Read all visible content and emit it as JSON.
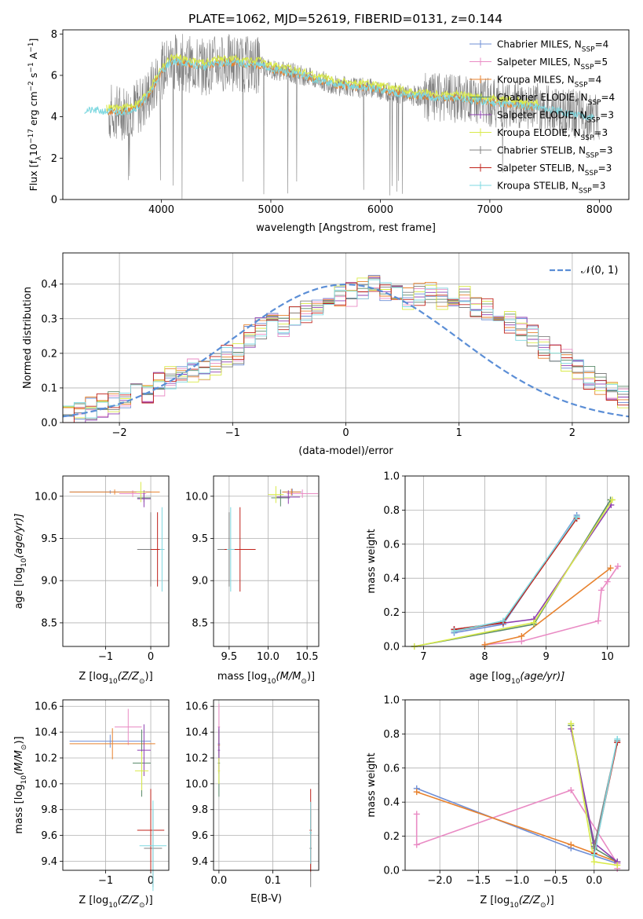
{
  "figure_title": "PLATE=1062, MJD=52619, FIBERID=0131, z=0.144",
  "colors": {
    "chabrier_miles": "#6f8fd6",
    "salpeter_miles": "#e98bc4",
    "kroupa_miles": "#e8822e",
    "chabrier_elodie": "#5a8a6a",
    "salpeter_elodie": "#8e3fb0",
    "kroupa_elodie": "#d9ea4a",
    "chabrier_stelib": "#808080",
    "salpeter_stelib": "#c0221a",
    "kroupa_stelib": "#7ed8e0",
    "gaussian": "#5b8ed6"
  },
  "chart_data": [
    {
      "id": "spectrum",
      "type": "line",
      "xlabel": "wavelength [Angstrom, rest frame]",
      "ylabel_main": "Flux [f",
      "ylabel_sub": "λ",
      "ylabel_rest": "10",
      "ylabel_exp": "−17",
      "ylabel_tail": " erg cm",
      "ylabel_exp2": "−2",
      "ylabel_tail2": " s",
      "ylabel_exp3": "−1",
      "ylabel_tail3": " A",
      "ylabel_exp4": "−1",
      "ylabel_end": "]",
      "xlim": [
        3100,
        8270
      ],
      "ylim": [
        0,
        8.2
      ],
      "xticks": [
        4000,
        5000,
        6000,
        7000,
        8000
      ],
      "yticks": [
        0,
        2,
        4,
        6,
        8
      ],
      "grid": false,
      "legend_position": "top-right",
      "legend": [
        {
          "text": "Chabrier MILES, N",
          "sub": "SSP",
          "tail": "=4",
          "color_key": "chabrier_miles"
        },
        {
          "text": "Salpeter MILES, N",
          "sub": "SSP",
          "tail": "=5",
          "color_key": "salpeter_miles"
        },
        {
          "text": "Kroupa MILES, N",
          "sub": "SSP",
          "tail": "=4",
          "color_key": "kroupa_miles"
        },
        {
          "text": "Chabrier ELODIE, N",
          "sub": "SSP",
          "tail": "=4",
          "color_key": "chabrier_elodie"
        },
        {
          "text": "Salpeter ELODIE, N",
          "sub": "SSP",
          "tail": "=3",
          "color_key": "salpeter_elodie"
        },
        {
          "text": "Kroupa ELODIE, N",
          "sub": "SSP",
          "tail": "=3",
          "color_key": "kroupa_elodie"
        },
        {
          "text": "Chabrier STELIB, N",
          "sub": "SSP",
          "tail": "=3",
          "color_key": "chabrier_stelib"
        },
        {
          "text": "Salpeter STELIB, N",
          "sub": "SSP",
          "tail": "=3",
          "color_key": "salpeter_stelib"
        },
        {
          "text": "Kroupa STELIB, N",
          "sub": "SSP",
          "tail": "=3",
          "color_key": "kroupa_stelib"
        }
      ],
      "data_x": [
        3300,
        3400,
        3500,
        3600,
        3700,
        3800,
        3900,
        4000,
        4100,
        4200,
        4300,
        4400,
        4500,
        4600,
        4700,
        4800,
        4900,
        5000,
        5100,
        5200,
        5300,
        5400,
        5500,
        5600,
        5700,
        5800,
        5900,
        6000,
        6100,
        6200,
        6300,
        6400,
        6500,
        6600,
        6700,
        6800,
        6900,
        7000,
        7100,
        7200,
        7300,
        7400,
        7500,
        7600,
        7700,
        7800,
        7900,
        8000
      ],
      "model_flux": [
        4.3,
        4.3,
        4.25,
        4.2,
        4.3,
        4.5,
        5.2,
        6.2,
        6.7,
        6.6,
        6.5,
        6.4,
        6.6,
        6.6,
        6.6,
        6.5,
        6.5,
        6.3,
        6.2,
        6.1,
        6.0,
        5.8,
        5.7,
        5.5,
        5.5,
        5.4,
        5.4,
        5.3,
        5.2,
        5.1,
        5.0,
        5.0,
        4.9,
        4.9,
        4.9,
        4.8,
        4.75,
        4.7,
        4.65,
        4.6,
        4.55,
        4.5,
        4.4,
        4.3,
        4.2,
        4.1,
        4.0,
        4.0
      ],
      "data_start": 3520,
      "data_end": 8000
    },
    {
      "id": "residuals",
      "type": "histogram",
      "xlabel": "(data-model)/error",
      "ylabel": "Normed distribution",
      "xlim": [
        -2.5,
        2.5
      ],
      "ylim": [
        0,
        0.49
      ],
      "xticks": [
        -2,
        -1,
        0,
        1,
        2
      ],
      "yticks": [
        0.0,
        0.1,
        0.2,
        0.3,
        0.4
      ],
      "grid": true,
      "legend_position": "top-right",
      "gaussian_label": "𝒩(0, 1)",
      "bin_width": 0.1,
      "bin_start": -2.5,
      "base_counts": [
        0.03,
        0.03,
        0.04,
        0.05,
        0.06,
        0.06,
        0.08,
        0.09,
        0.11,
        0.13,
        0.13,
        0.15,
        0.15,
        0.17,
        0.19,
        0.2,
        0.25,
        0.27,
        0.29,
        0.28,
        0.3,
        0.32,
        0.33,
        0.35,
        0.37,
        0.37,
        0.39,
        0.41,
        0.38,
        0.38,
        0.36,
        0.37,
        0.38,
        0.36,
        0.37,
        0.36,
        0.34,
        0.33,
        0.31,
        0.29,
        0.27,
        0.25,
        0.22,
        0.2,
        0.18,
        0.15,
        0.13,
        0.11,
        0.09,
        0.07
      ]
    },
    {
      "id": "age_vs_Z",
      "type": "scatter",
      "xlabel": "Z [log",
      "xlabel_sub": "10",
      "xlabel_tail": "(Z/Z",
      "xlabel_sun": "⊙",
      "xlabel_end": ")]",
      "ylabel": "age  [log",
      "ylabel_sub": "10",
      "ylabel_tail": "(age/yr)]",
      "xlim": [
        -1.95,
        0.4
      ],
      "ylim": [
        8.22,
        10.24
      ],
      "xticks": [
        -1,
        0
      ],
      "yticks": [
        8.5,
        9.0,
        9.5,
        10.0
      ],
      "grid": true,
      "points": [
        {
          "x": -0.9,
          "y": 10.05,
          "xerr": 0.9,
          "yerr": 0.02,
          "c": "chabrier_miles"
        },
        {
          "x": -0.4,
          "y": 10.03,
          "xerr": 0.3,
          "yerr": 0.04,
          "c": "salpeter_miles"
        },
        {
          "x": -0.8,
          "y": 10.05,
          "xerr": 1.0,
          "yerr": 0.03,
          "c": "kroupa_miles"
        },
        {
          "x": -0.15,
          "y": 9.98,
          "xerr": 0.15,
          "yerr": 0.05,
          "c": "chabrier_elodie"
        },
        {
          "x": -0.15,
          "y": 9.97,
          "xerr": 0.15,
          "yerr": 0.1,
          "c": "salpeter_elodie"
        },
        {
          "x": -0.22,
          "y": 10.05,
          "xerr": 0.1,
          "yerr": 0.12,
          "c": "kroupa_elodie"
        },
        {
          "x": 0.0,
          "y": 9.37,
          "xerr": 0.3,
          "yerr": 0.44,
          "c": "chabrier_stelib"
        },
        {
          "x": 0.15,
          "y": 9.37,
          "xerr": 0.15,
          "yerr": 0.44,
          "c": "salpeter_stelib"
        },
        {
          "x": 0.25,
          "y": 9.37,
          "xerr": 0.05,
          "yerr": 0.5,
          "c": "kroupa_stelib"
        }
      ]
    },
    {
      "id": "age_vs_mass",
      "type": "scatter",
      "xlabel": "mass [log",
      "xlabel_sub": "10",
      "xlabel_tail": "(M/M",
      "xlabel_sun": "⊙",
      "xlabel_end": ")]",
      "xlim": [
        9.3,
        10.65
      ],
      "ylim": [
        8.22,
        10.24
      ],
      "xticks": [
        9.5,
        10.0,
        10.5
      ],
      "yticks": [
        8.5,
        9.0,
        9.5,
        10.0
      ],
      "grid": true,
      "points": [
        {
          "x": 10.31,
          "y": 10.05,
          "xerr": 0.12,
          "yerr": 0.04,
          "c": "chabrier_miles"
        },
        {
          "x": 10.44,
          "y": 10.03,
          "xerr": 0.2,
          "yerr": 0.05,
          "c": "salpeter_miles"
        },
        {
          "x": 10.3,
          "y": 10.05,
          "xerr": 0.12,
          "yerr": 0.04,
          "c": "kroupa_miles"
        },
        {
          "x": 10.16,
          "y": 9.98,
          "xerr": 0.12,
          "yerr": 0.1,
          "c": "chabrier_elodie"
        },
        {
          "x": 10.26,
          "y": 9.99,
          "xerr": 0.15,
          "yerr": 0.08,
          "c": "salpeter_elodie"
        },
        {
          "x": 10.1,
          "y": 10.02,
          "xerr": 0.1,
          "yerr": 0.1,
          "c": "kroupa_elodie"
        },
        {
          "x": 9.5,
          "y": 9.37,
          "xerr": 0.15,
          "yerr": 0.44,
          "c": "chabrier_stelib"
        },
        {
          "x": 9.64,
          "y": 9.37,
          "xerr": 0.2,
          "yerr": 0.5,
          "c": "salpeter_stelib"
        },
        {
          "x": 9.52,
          "y": 9.37,
          "xerr": 0.05,
          "yerr": 0.5,
          "c": "kroupa_stelib"
        }
      ]
    },
    {
      "id": "weight_vs_age",
      "type": "line",
      "xlabel": "age  [log",
      "xlabel_sub": "10",
      "xlabel_tail": "(age/yr)]",
      "ylabel": "mass weight",
      "xlim": [
        6.7,
        10.35
      ],
      "ylim": [
        0,
        1.0
      ],
      "xticks": [
        7,
        8,
        9,
        10
      ],
      "yticks": [
        0.0,
        0.2,
        0.4,
        0.6,
        0.8,
        1.0
      ],
      "grid": true,
      "series": [
        {
          "c": "chabrier_miles",
          "x": [
            7.5,
            8.3,
            9.5
          ],
          "y": [
            0.08,
            0.13,
            0.77
          ]
        },
        {
          "c": "salpeter_miles",
          "x": [
            8.0,
            8.6,
            9.85,
            9.9,
            10.0,
            10.17
          ],
          "y": [
            0.01,
            0.03,
            0.15,
            0.33,
            0.38,
            0.47
          ]
        },
        {
          "c": "kroupa_miles",
          "x": [
            8.0,
            8.6,
            10.05
          ],
          "y": [
            0.01,
            0.06,
            0.46
          ]
        },
        {
          "c": "chabrier_elodie",
          "x": [
            6.85,
            8.8,
            10.05
          ],
          "y": [
            0.0,
            0.13,
            0.86
          ]
        },
        {
          "c": "salpeter_elodie",
          "x": [
            7.5,
            8.8,
            10.06
          ],
          "y": [
            0.1,
            0.16,
            0.83
          ]
        },
        {
          "c": "kroupa_elodie",
          "x": [
            6.85,
            8.8,
            10.08
          ],
          "y": [
            0.0,
            0.14,
            0.86
          ]
        },
        {
          "c": "chabrier_stelib",
          "x": [
            7.5,
            8.3,
            9.5
          ],
          "y": [
            0.09,
            0.14,
            0.76
          ]
        },
        {
          "c": "salpeter_stelib",
          "x": [
            7.5,
            8.3,
            9.5
          ],
          "y": [
            0.1,
            0.14,
            0.75
          ]
        },
        {
          "c": "kroupa_stelib",
          "x": [
            7.5,
            8.3,
            9.5
          ],
          "y": [
            0.09,
            0.15,
            0.76
          ]
        }
      ]
    },
    {
      "id": "mass_vs_Z",
      "type": "scatter",
      "xlabel": "Z [log",
      "xlabel_sub": "10",
      "xlabel_tail": "(Z/Z",
      "xlabel_sun": "⊙",
      "xlabel_end": ")]",
      "ylabel": "mass [log",
      "ylabel_sub": "10",
      "ylabel_tail": "(M/M",
      "ylabel_sun": "⊙",
      "ylabel_end": ")]",
      "xlim": [
        -1.95,
        0.4
      ],
      "ylim": [
        9.33,
        10.65
      ],
      "xticks": [
        -1,
        0
      ],
      "yticks": [
        9.4,
        9.6,
        9.8,
        10.0,
        10.2,
        10.4,
        10.6
      ],
      "grid": true,
      "points": [
        {
          "x": -0.9,
          "y": 10.33,
          "xerr": 0.9,
          "yerr": 0.05,
          "c": "chabrier_miles"
        },
        {
          "x": -0.5,
          "y": 10.44,
          "xerr": 0.3,
          "yerr": 0.14,
          "c": "salpeter_miles"
        },
        {
          "x": -0.85,
          "y": 10.31,
          "xerr": 0.95,
          "yerr": 0.12,
          "c": "kroupa_miles"
        },
        {
          "x": -0.2,
          "y": 10.16,
          "xerr": 0.2,
          "yerr": 0.26,
          "c": "chabrier_elodie"
        },
        {
          "x": -0.15,
          "y": 10.26,
          "xerr": 0.15,
          "yerr": 0.2,
          "c": "salpeter_elodie"
        },
        {
          "x": -0.2,
          "y": 10.1,
          "xerr": 0.15,
          "yerr": 0.15,
          "c": "kroupa_elodie"
        },
        {
          "x": 0.05,
          "y": 9.5,
          "xerr": 0.2,
          "yerr": 0.3,
          "c": "chabrier_stelib"
        },
        {
          "x": 0.0,
          "y": 9.64,
          "xerr": 0.3,
          "yerr": 0.32,
          "c": "salpeter_stelib"
        },
        {
          "x": 0.05,
          "y": 9.52,
          "xerr": 0.3,
          "yerr": 0.35,
          "c": "kroupa_stelib"
        }
      ]
    },
    {
      "id": "mass_vs_ebv",
      "type": "scatter",
      "xlabel": "E(B-V)",
      "xlim": [
        -0.01,
        0.185
      ],
      "ylim": [
        9.33,
        10.65
      ],
      "xticks": [
        0.0,
        0.1
      ],
      "yticks": [
        9.4,
        9.6,
        9.8,
        10.0,
        10.2,
        10.4,
        10.6
      ],
      "grid": true,
      "points": [
        {
          "x": 0.0,
          "y": 10.31,
          "xerr": 0.002,
          "yerr": 0.12,
          "c": "chabrier_miles"
        },
        {
          "x": 0.0,
          "y": 10.44,
          "xerr": 0.002,
          "yerr": 0.18,
          "c": "salpeter_miles"
        },
        {
          "x": 0.0,
          "y": 10.3,
          "xerr": 0.002,
          "yerr": 0.12,
          "c": "kroupa_miles"
        },
        {
          "x": 0.0,
          "y": 10.16,
          "xerr": 0.002,
          "yerr": 0.26,
          "c": "chabrier_elodie"
        },
        {
          "x": 0.0,
          "y": 10.26,
          "xerr": 0.002,
          "yerr": 0.18,
          "c": "salpeter_elodie"
        },
        {
          "x": 0.0,
          "y": 10.1,
          "xerr": 0.002,
          "yerr": 0.1,
          "c": "kroupa_elodie"
        },
        {
          "x": 0.17,
          "y": 9.5,
          "xerr": 0.002,
          "yerr": 0.3,
          "c": "chabrier_stelib"
        },
        {
          "x": 0.17,
          "y": 9.64,
          "xerr": 0.002,
          "yerr": 0.32,
          "c": "salpeter_stelib"
        },
        {
          "x": 0.17,
          "y": 9.62,
          "xerr": 0.002,
          "yerr": 0.24,
          "c": "kroupa_stelib"
        }
      ]
    },
    {
      "id": "weight_vs_Z",
      "type": "line",
      "xlabel": "Z [log",
      "xlabel_sub": "10",
      "xlabel_tail": "(Z/Z",
      "xlabel_sun": "⊙",
      "xlabel_end": ")]",
      "ylabel": "mass weight",
      "xlim": [
        -2.45,
        0.45
      ],
      "ylim": [
        0,
        1.0
      ],
      "xticks": [
        -2.0,
        -1.5,
        -1.0,
        -0.5,
        0.0
      ],
      "xtick_labels": [
        "−2.0",
        "−1.5",
        "−1.0",
        "−0.5",
        "0.0"
      ],
      "yticks": [
        0.0,
        0.2,
        0.4,
        0.6,
        0.8,
        1.0
      ],
      "grid": true,
      "series": [
        {
          "c": "chabrier_miles",
          "x": [
            -2.3,
            -0.3,
            0.3
          ],
          "y": [
            0.48,
            0.13,
            0.04
          ]
        },
        {
          "c": "salpeter_miles",
          "x": [
            -2.3,
            -2.3,
            -0.3,
            0.3,
            0.3
          ],
          "y": [
            0.33,
            0.15,
            0.47,
            0.04,
            0.01
          ]
        },
        {
          "c": "kroupa_miles",
          "x": [
            -2.3,
            -0.3,
            0.3
          ],
          "y": [
            0.46,
            0.15,
            0.05
          ]
        },
        {
          "c": "chabrier_elodie",
          "x": [
            -0.3,
            0.0,
            0.3
          ],
          "y": [
            0.85,
            0.13,
            0.05
          ]
        },
        {
          "c": "salpeter_elodie",
          "x": [
            -0.3,
            0.0,
            0.3
          ],
          "y": [
            0.83,
            0.16,
            0.05
          ]
        },
        {
          "c": "kroupa_elodie",
          "x": [
            -0.3,
            0.0,
            0.3
          ],
          "y": [
            0.86,
            0.05,
            0.03
          ]
        },
        {
          "c": "chabrier_stelib",
          "x": [
            0.0,
            0.3
          ],
          "y": [
            0.14,
            0.76
          ]
        },
        {
          "c": "salpeter_stelib",
          "x": [
            0.0,
            0.3
          ],
          "y": [
            0.1,
            0.75
          ]
        },
        {
          "c": "kroupa_stelib",
          "x": [
            0.0,
            0.3
          ],
          "y": [
            0.09,
            0.77
          ]
        }
      ]
    }
  ]
}
